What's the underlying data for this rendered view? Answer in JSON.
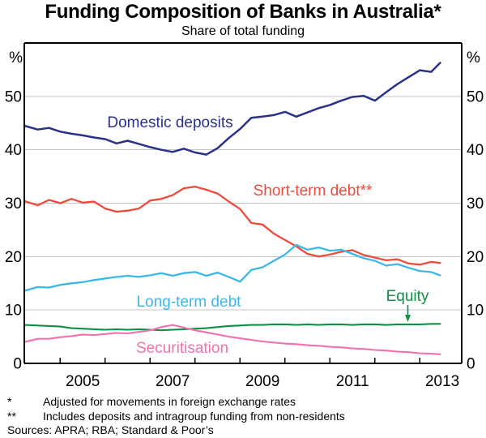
{
  "title": "Funding Composition of Banks in Australia*",
  "subtitle": "Share of total funding",
  "footnotes": [
    {
      "marker": "*",
      "text": "Adjusted for movements in foreign exchange rates"
    },
    {
      "marker": "**",
      "text": "Includes deposits and intragroup funding from non-residents"
    }
  ],
  "sources": "Sources: APRA; RBA; Standard & Poor’s",
  "chart_data": {
    "type": "line",
    "title": "Funding Composition of Banks in Australia*",
    "subtitle": "Share of total funding",
    "unit": "%",
    "ylim": [
      0,
      60
    ],
    "yticks": [
      0,
      10,
      20,
      30,
      40,
      50
    ],
    "xlim": [
      2004.2,
      2013.93
    ],
    "year_ticks": [
      2005,
      2006,
      2007,
      2008,
      2009,
      2010,
      2011,
      2012,
      2013
    ],
    "year_labels": [
      "2005",
      "2007",
      "2009",
      "2011",
      "2013"
    ],
    "year_label_positions": [
      2005.5,
      2007.5,
      2009.5,
      2011.5,
      2013.5
    ],
    "grid": true,
    "grid_color": "#c4c4c4",
    "axis_color": "#000000",
    "legend_position": "inline-labels",
    "x": [
      2004.2,
      2004.5,
      2004.75,
      2005.0,
      2005.25,
      2005.5,
      2005.75,
      2006.0,
      2006.25,
      2006.5,
      2006.75,
      2007.0,
      2007.25,
      2007.5,
      2007.75,
      2008.0,
      2008.25,
      2008.5,
      2008.75,
      2009.0,
      2009.25,
      2009.5,
      2009.75,
      2010.0,
      2010.25,
      2010.5,
      2010.75,
      2011.0,
      2011.25,
      2011.5,
      2011.75,
      2012.0,
      2012.25,
      2012.5,
      2012.75,
      2013.0,
      2013.25,
      2013.45
    ],
    "series": [
      {
        "name": "Domestic deposits",
        "label": "Domestic deposits",
        "color": "#2a3189",
        "values": [
          44.5,
          43.8,
          44.1,
          43.4,
          43.0,
          42.7,
          42.3,
          42.0,
          41.2,
          41.7,
          41.1,
          40.5,
          40.0,
          39.6,
          40.2,
          39.5,
          39.1,
          40.3,
          42.2,
          43.9,
          46.0,
          46.2,
          46.5,
          47.1,
          46.2,
          47.0,
          47.8,
          48.4,
          49.2,
          49.9,
          50.1,
          49.2,
          50.8,
          52.3,
          53.6,
          54.9,
          54.6,
          56.3
        ]
      },
      {
        "name": "Short-term debt",
        "label": "Short-term debt**",
        "color": "#ee4b3c",
        "values": [
          30.4,
          29.6,
          30.6,
          30.0,
          30.8,
          30.1,
          30.3,
          29.0,
          28.4,
          28.6,
          29.0,
          30.5,
          30.8,
          31.5,
          32.8,
          33.1,
          32.5,
          31.8,
          30.3,
          28.9,
          26.3,
          26.0,
          24.3,
          23.1,
          21.9,
          20.5,
          20.0,
          20.4,
          20.9,
          21.2,
          20.3,
          19.8,
          19.3,
          19.5,
          18.7,
          18.5,
          19.0,
          18.8
        ]
      },
      {
        "name": "Long-term debt",
        "label": "Long-term debt",
        "color": "#3db7ea",
        "values": [
          13.6,
          14.3,
          14.2,
          14.7,
          15.0,
          15.2,
          15.6,
          15.9,
          16.2,
          16.4,
          16.2,
          16.5,
          16.9,
          16.4,
          16.9,
          17.1,
          16.4,
          17.0,
          16.2,
          15.3,
          17.5,
          18.0,
          19.2,
          20.4,
          22.2,
          21.3,
          21.7,
          21.1,
          21.3,
          20.5,
          19.7,
          19.2,
          18.3,
          18.6,
          17.9,
          17.3,
          17.1,
          16.5
        ]
      },
      {
        "name": "Equity",
        "label": "Equity",
        "color": "#0f9145",
        "values": [
          7.2,
          7.1,
          7.0,
          6.9,
          6.6,
          6.5,
          6.4,
          6.3,
          6.4,
          6.3,
          6.4,
          6.3,
          6.2,
          6.3,
          6.4,
          6.5,
          6.6,
          6.8,
          7.0,
          7.1,
          7.2,
          7.2,
          7.3,
          7.3,
          7.2,
          7.3,
          7.2,
          7.3,
          7.3,
          7.2,
          7.3,
          7.3,
          7.2,
          7.3,
          7.3,
          7.3,
          7.4,
          7.4
        ]
      },
      {
        "name": "Securitisation",
        "label": "Securitisation",
        "color": "#f171ae",
        "values": [
          4.0,
          4.6,
          4.6,
          4.9,
          5.1,
          5.4,
          5.3,
          5.5,
          5.7,
          5.6,
          5.9,
          6.2,
          6.8,
          7.2,
          6.7,
          6.2,
          5.8,
          5.4,
          5.0,
          4.7,
          4.4,
          4.1,
          3.9,
          3.7,
          3.6,
          3.4,
          3.3,
          3.1,
          3.0,
          2.8,
          2.7,
          2.5,
          2.4,
          2.2,
          2.1,
          1.9,
          1.8,
          1.7
        ]
      }
    ]
  }
}
